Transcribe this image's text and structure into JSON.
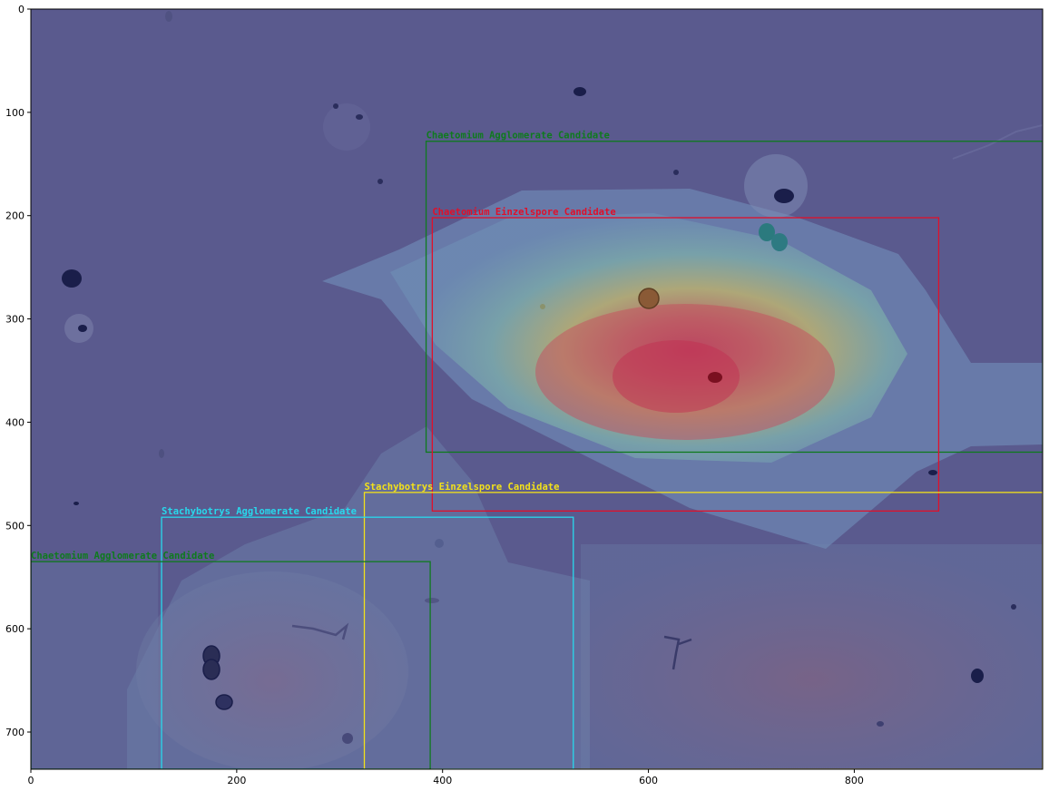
{
  "axes": {
    "x_ticks": [
      0,
      200,
      400,
      600,
      800
    ],
    "y_ticks": [
      0,
      100,
      200,
      300,
      400,
      500,
      600,
      700
    ],
    "xlim": [
      0,
      983
    ],
    "ylim": [
      736,
      0
    ]
  },
  "colors": {
    "background_tint": "#5a5a8e",
    "green": "#0f7a1e",
    "red": "#e0102a",
    "yellow": "#f2e11a",
    "cyan": "#28d8ec"
  },
  "boxes": [
    {
      "label": "Chaetomium Agglomerate Candidate",
      "color": "green",
      "x0": 384,
      "y0": 128,
      "x1": 983,
      "y1": 429
    },
    {
      "label": "Chaetomium Einzelspore Candidate",
      "color": "red",
      "x0": 390,
      "y0": 202,
      "x1": 882,
      "y1": 486
    },
    {
      "label": "Stachybotrys Einzelspore Candidate",
      "color": "yellow",
      "x0": 324,
      "y0": 468,
      "x1": 983,
      "y1": 736
    },
    {
      "label": "Stachybotrys Agglomerate Candidate",
      "color": "cyan",
      "x0": 127,
      "y0": 492,
      "x1": 527,
      "y1": 736
    },
    {
      "label": "Chaetomium Agglomerate Candidate",
      "color": "green",
      "x0": 0,
      "y0": 535,
      "x1": 388,
      "y1": 736
    }
  ]
}
